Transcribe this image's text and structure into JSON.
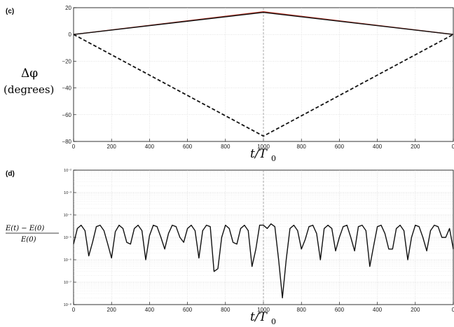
{
  "chart_data": [
    {
      "panel": "(c)",
      "type": "line",
      "xlabel_main": "t/T",
      "xlabel_sub": "0",
      "ylabel_line1": "Δφ",
      "ylabel_line2": "(degrees)",
      "x_tick_labels": [
        "0",
        "200",
        "400",
        "600",
        "800",
        "1000",
        "800",
        "600",
        "400",
        "200",
        "0"
      ],
      "ylim": [
        -80,
        20
      ],
      "y_ticks": [
        20,
        0,
        -20,
        -40,
        -60,
        -80
      ],
      "y_tick_labels": [
        "20",
        "0",
        "−20",
        "−40",
        "−60",
        "−80"
      ],
      "grid": true,
      "series": [
        {
          "color": "#c0392b",
          "style": "solid",
          "x": [
            0,
            1000,
            2000
          ],
          "values": [
            0,
            17,
            0
          ]
        },
        {
          "color": "#111111",
          "style": "solid",
          "x": [
            0,
            1000,
            2000
          ],
          "values": [
            0,
            16.5,
            0
          ]
        },
        {
          "color": "#111111",
          "style": "dashed",
          "x": [
            0,
            1000,
            2000
          ],
          "values": [
            0,
            -76,
            0
          ]
        }
      ],
      "midline_x": 1000
    },
    {
      "panel": "(d)",
      "type": "line",
      "yscale": "log",
      "xlabel_main": "t/T",
      "xlabel_sub": "0",
      "ylabel_num": "E(t) − E(0)",
      "ylabel_den": "E(0)",
      "x_tick_labels": [
        "0",
        "200",
        "400",
        "600",
        "800",
        "1000",
        "800",
        "600",
        "400",
        "200",
        "0"
      ],
      "ylim": [
        1e-08,
        0.01
      ],
      "y_tick_labels": [
        "10⁻²",
        "10⁻³",
        "10⁻⁴",
        "10⁻⁵",
        "10⁻⁶",
        "10⁻⁷",
        "10⁻⁸"
      ],
      "grid": true,
      "series": [
        {
          "color": "#111111",
          "style": "solid",
          "x": [
            0,
            20,
            40,
            60,
            80,
            100,
            120,
            140,
            160,
            180,
            200,
            220,
            240,
            260,
            280,
            300,
            320,
            340,
            360,
            380,
            400,
            420,
            440,
            460,
            480,
            500,
            520,
            540,
            560,
            580,
            600,
            620,
            640,
            660,
            680,
            700,
            720,
            740,
            760,
            780,
            800,
            820,
            840,
            860,
            880,
            900,
            920,
            940,
            960,
            980,
            1000,
            1020,
            1040,
            1060,
            1080,
            1100,
            1120,
            1140,
            1160,
            1180,
            1200,
            1220,
            1240,
            1260,
            1280,
            1300,
            1320,
            1340,
            1360,
            1380,
            1400,
            1420,
            1440,
            1460,
            1480,
            1500,
            1520,
            1540,
            1560,
            1580,
            1600,
            1620,
            1640,
            1660,
            1680,
            1700,
            1720,
            1740,
            1760,
            1780,
            1800,
            1820,
            1840,
            1860,
            1880,
            1900,
            1920,
            1940,
            1960,
            1980,
            2000
          ],
          "values": [
            5e-06,
            2.5e-05,
            3.5e-05,
            2e-05,
            1.5e-06,
            6e-06,
            3e-05,
            3.5e-05,
            2e-05,
            5e-06,
            1.2e-06,
            1.8e-05,
            3.5e-05,
            2.5e-05,
            6e-06,
            5e-06,
            2.5e-05,
            3.5e-05,
            2e-05,
            1e-06,
            1.2e-05,
            3.5e-05,
            3e-05,
            1e-05,
            3e-06,
            1.5e-05,
            3.5e-05,
            3e-05,
            1e-05,
            6e-06,
            2.5e-05,
            3.5e-05,
            2e-05,
            1.2e-06,
            2e-05,
            3.5e-05,
            3e-05,
            3e-07,
            4e-07,
            1e-05,
            3.5e-05,
            2.5e-05,
            6e-06,
            5e-06,
            2.5e-05,
            3.5e-05,
            2e-05,
            5e-07,
            3e-06,
            3.5e-05,
            3.5e-05,
            2.5e-05,
            4e-05,
            3e-05,
            1e-06,
            2e-08,
            1e-06,
            2.5e-05,
            3.5e-05,
            2e-05,
            3e-06,
            8e-06,
            3e-05,
            3.5e-05,
            1.5e-05,
            1e-06,
            2.5e-05,
            3.5e-05,
            2.5e-05,
            2.5e-06,
            1e-05,
            3e-05,
            3.5e-05,
            1e-05,
            2.5e-06,
            3e-05,
            3.5e-05,
            2e-05,
            5e-07,
            4e-06,
            3e-05,
            3.5e-05,
            1.5e-05,
            3e-06,
            3e-06,
            2.5e-05,
            3.5e-05,
            2e-05,
            1e-06,
            1e-05,
            3.5e-05,
            3e-05,
            1e-05,
            2.5e-06,
            2e-05,
            3.5e-05,
            3e-05,
            1e-05,
            1e-05,
            2.5e-05,
            3e-06
          ]
        }
      ],
      "midline_x": 1000
    }
  ]
}
